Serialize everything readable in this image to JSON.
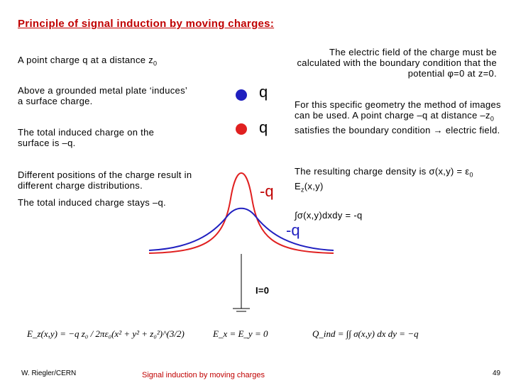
{
  "title": "Principle of signal induction by moving charges:",
  "left": [
    [
      "A point charge q at a distance z",
      "0"
    ],
    [
      "Above a grounded metal plate ‘induces’ a surface charge."
    ],
    [
      "The total induced charge on the surface is –q."
    ],
    [
      "Different positions of the charge result in different charge distributions."
    ],
    [
      "The total induced charge stays –q."
    ]
  ],
  "right": [
    [
      "The electric field of the charge must be calculated with the boundary condition that the potential φ=0 at z=0."
    ],
    [
      "For this specific geometry the method of images can be used. A point charge –q at distance –z",
      "0",
      " satisfies the boundary condition → electric field."
    ],
    [
      "The resulting charge density is σ(x,y) = ε",
      "0",
      " E",
      "z",
      "(x,y)"
    ],
    [
      "∫σ(x,y)dxdy = -q"
    ]
  ],
  "diagram": {
    "charge_top": "q",
    "charge_bottom": "q",
    "induced_red": "-q",
    "induced_blue": "-q",
    "current": "I=0"
  },
  "equations": [
    "E_z(x,y) = −q z₀ / 2πε₀(x² + y² + z₀²)^(3/2)",
    "E_x = E_y = 0",
    "Q_ind = ∫∫ σ(x,y) dx dy = −q"
  ],
  "footer": {
    "author": "W. Riegler/CERN",
    "center": "Signal induction by moving charges",
    "page": "49"
  }
}
